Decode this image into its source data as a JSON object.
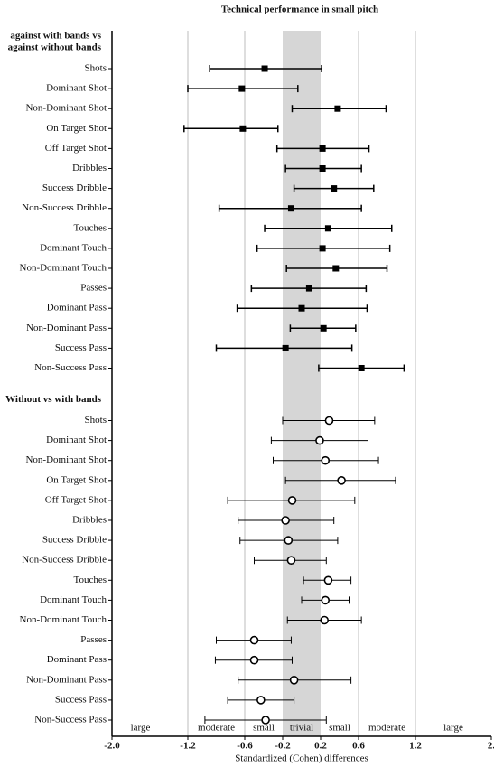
{
  "chart_data": {
    "type": "forest",
    "title": "Technical performance in small pitch",
    "x_label": "Standardized (Cohen) differences",
    "xlim": [
      -2.0,
      2.0
    ],
    "xticks": [
      {
        "value": -2.0,
        "label": "-2.0"
      },
      -1.2,
      -0.6,
      -0.2,
      0.2,
      0.6,
      1.2,
      {
        "value": 2.0,
        "label": "2."
      }
    ],
    "thresholds": [
      -1.2,
      -0.6,
      0.6,
      1.2
    ],
    "trivial_band": [
      -0.2,
      0.2
    ],
    "zones": [
      {
        "label": "large",
        "x": -1.7
      },
      {
        "label": "moderate",
        "x": -0.9
      },
      {
        "label": "small",
        "x": -0.4
      },
      {
        "label": "trivial",
        "x": 0
      },
      {
        "label": "small",
        "x": 0.4
      },
      {
        "label": "moderate",
        "x": 0.9
      },
      {
        "label": "large",
        "x": 1.6
      }
    ],
    "groups": [
      {
        "name": [
          "against with bands vs",
          "against without bands"
        ],
        "marker": "filled-square",
        "color": "#000000",
        "categories": [
          "Shots",
          "Dominant Shot",
          "Non-Dominant Shot",
          "On Target Shot",
          "Off Target Shot",
          "Dribbles",
          "Success Dribble",
          "Non-Success Dribble",
          "Touches",
          "Dominant Touch",
          "Non-Dominant Touch",
          "Passes",
          "Dominant Pass",
          "Non-Dominant Pass",
          "Success Pass",
          "Non-Success Pass"
        ],
        "values": [
          -0.39,
          -0.63,
          0.38,
          -0.62,
          0.22,
          0.22,
          0.34,
          -0.11,
          0.28,
          0.22,
          0.36,
          0.08,
          0.0,
          0.23,
          -0.17,
          0.63
        ],
        "lower": [
          -0.97,
          -1.2,
          -0.1,
          -1.24,
          -0.26,
          -0.17,
          -0.08,
          -0.87,
          -0.39,
          -0.47,
          -0.16,
          -0.53,
          -0.68,
          -0.12,
          -0.9,
          0.18
        ],
        "upper": [
          0.21,
          -0.04,
          0.89,
          -0.25,
          0.71,
          0.63,
          0.76,
          0.63,
          0.95,
          0.93,
          0.9,
          0.68,
          0.69,
          0.57,
          0.53,
          1.08
        ]
      },
      {
        "name": [
          "Without vs with bands"
        ],
        "marker": "open-circle",
        "color": "#000000",
        "categories": [
          "Shots",
          "Dominant Shot",
          "Non-Dominant Shot",
          "On Target Shot",
          "Off Target Shot",
          "Dribbles",
          "Success Dribble",
          "Non-Success Dribble",
          "Touches",
          "Dominant Touch",
          "Non-Dominant Touch",
          "Passes",
          "Dominant Pass",
          "Non-Dominant Pass",
          "Success Pass",
          "Non-Success Pass"
        ],
        "values": [
          0.29,
          0.19,
          0.25,
          0.42,
          -0.1,
          -0.17,
          -0.14,
          -0.11,
          0.28,
          0.25,
          0.24,
          -0.5,
          -0.5,
          -0.08,
          -0.43,
          -0.38
        ],
        "lower": [
          -0.2,
          -0.32,
          -0.3,
          -0.17,
          -0.78,
          -0.67,
          -0.65,
          -0.5,
          0.02,
          0.0,
          -0.15,
          -0.9,
          -0.91,
          -0.67,
          -0.78,
          -1.02
        ],
        "upper": [
          0.77,
          0.7,
          0.81,
          0.99,
          0.56,
          0.34,
          0.38,
          0.26,
          0.52,
          0.5,
          0.63,
          -0.11,
          -0.1,
          0.52,
          -0.08,
          0.26
        ]
      }
    ]
  }
}
